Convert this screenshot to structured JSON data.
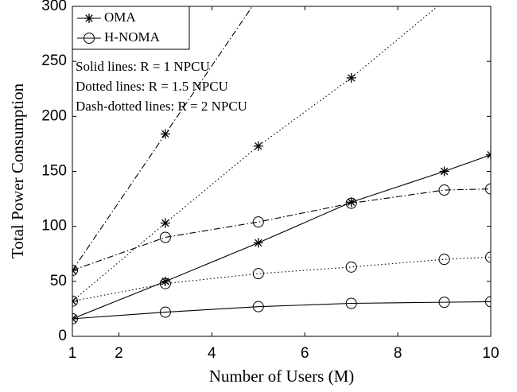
{
  "chart_data": {
    "type": "line",
    "xlabel": "Number of Users (M)",
    "ylabel": "Total Power Consumption",
    "legend": [
      {
        "name": "OMA",
        "marker": "star"
      },
      {
        "name": "H-NOMA",
        "marker": "circle"
      }
    ],
    "annotations": [
      "Solid lines: R = 1 NPCU",
      "Dotted lines: R = 1.5 NPCU",
      "Dash-dotted lines: R = 2 NPCU"
    ],
    "x": [
      1,
      3,
      5,
      7,
      9,
      10
    ],
    "series": [
      {
        "legend": 0,
        "style": "solid",
        "color": "#000000",
        "values": [
          16,
          50,
          85,
          122,
          150,
          165
        ]
      },
      {
        "legend": 0,
        "style": "dotted",
        "color": "#000000",
        "values": [
          32,
          103,
          173,
          235,
          305,
          340
        ]
      },
      {
        "legend": 0,
        "style": "dashdot",
        "color": "#000000",
        "values": [
          60,
          184,
          308,
          null,
          null,
          null
        ]
      },
      {
        "legend": 1,
        "style": "solid",
        "color": "#000000",
        "values": [
          16,
          22,
          27,
          30,
          31,
          31.5
        ]
      },
      {
        "legend": 1,
        "style": "dotted",
        "color": "#000000",
        "values": [
          32,
          48,
          57,
          63,
          70,
          72
        ]
      },
      {
        "legend": 1,
        "style": "dashdot",
        "color": "#000000",
        "values": [
          60,
          90,
          104,
          121,
          133,
          134
        ]
      }
    ],
    "xlim": [
      1,
      10
    ],
    "xticks": [
      1,
      2,
      4,
      6,
      8,
      10
    ],
    "ylim": [
      0,
      300
    ],
    "yticks": [
      0,
      50,
      100,
      150,
      200,
      250,
      300
    ],
    "grid": false
  }
}
